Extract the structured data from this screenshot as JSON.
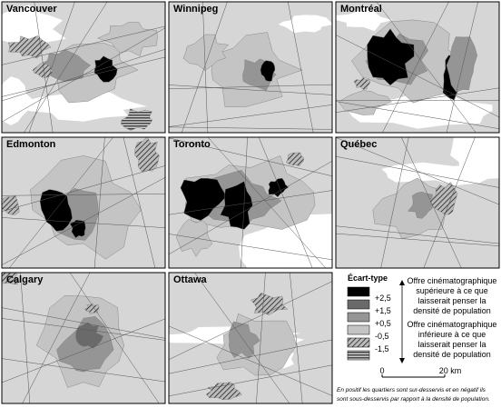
{
  "panels": [
    {
      "label": "Vancouver"
    },
    {
      "label": "Winnipeg"
    },
    {
      "label": "Montréal"
    },
    {
      "label": "Edmonton"
    },
    {
      "label": "Toronto"
    },
    {
      "label": "Québec"
    },
    {
      "label": "Calgary"
    },
    {
      "label": "Ottawa"
    }
  ],
  "legend": {
    "title": "Écart-type",
    "classes": [
      "+2,5",
      "+1,5",
      "+0,5",
      "-0,5",
      "-1,5"
    ],
    "upper_note": [
      "Offre cinématographique",
      "supérieure à ce que",
      "laisserait penser la",
      "densité de population"
    ],
    "lower_note": [
      "Offre cinématographique",
      "inférieure à ce que",
      "laisserait penser la",
      "densité de population"
    ]
  },
  "scale": {
    "start": "0",
    "end": "20 km"
  },
  "footnote": [
    "En positif les quartiers sont sur-desservis et en négatif ils",
    "sont sous-desservis par rapport à la densité de population."
  ]
}
